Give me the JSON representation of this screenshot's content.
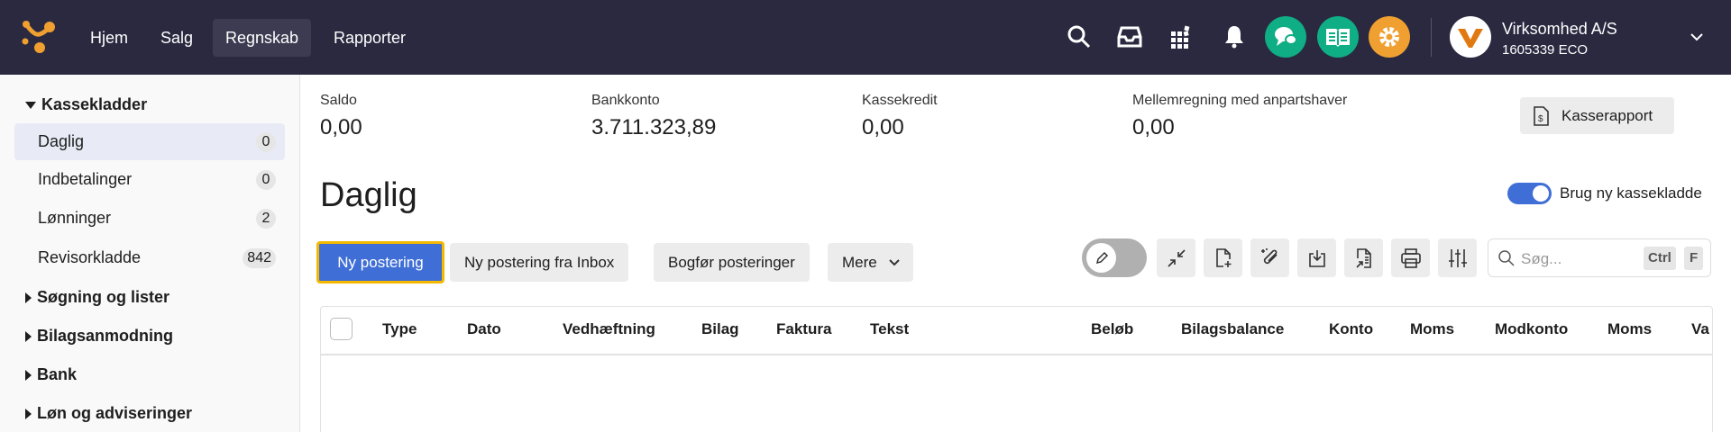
{
  "header": {
    "nav": [
      "Hjem",
      "Salg",
      "Regnskab",
      "Rapporter"
    ],
    "active_nav": "Regnskab",
    "icons": [
      "search-icon",
      "inbox-icon",
      "apps-icon",
      "bell-icon",
      "chat-icon",
      "book-icon",
      "gear-icon"
    ],
    "colors": {
      "bg": "#2a2940",
      "chat": "#0fae85",
      "book": "#0fae85",
      "gear": "#f0a030",
      "logo": "#f0a030"
    },
    "company": {
      "name": "Virksomhed A/S",
      "id": "1605339 ECO"
    }
  },
  "sidebar": {
    "kassekladder": {
      "label": "Kassekladder",
      "items": [
        {
          "label": "Daglig",
          "count": "0"
        },
        {
          "label": "Indbetalinger",
          "count": "0"
        },
        {
          "label": "Lønninger",
          "count": "2"
        },
        {
          "label": "Revisorkladde",
          "count": "842"
        }
      ]
    },
    "sections": [
      "Søgning og lister",
      "Bilagsanmodning",
      "Bank",
      "Løn og adviseringer"
    ]
  },
  "stats": [
    {
      "label": "Saldo",
      "value": "0,00"
    },
    {
      "label": "Bankkonto",
      "value": "3.711.323,89"
    },
    {
      "label": "Kassekredit",
      "value": "0,00"
    },
    {
      "label": "Mellemregning med anpartshaver",
      "value": "0,00"
    }
  ],
  "kasserapport_label": "Kasserapport",
  "title": "Daglig",
  "toggle": {
    "label": "Brug ny kassekladde",
    "on": true,
    "color": "#3f6fd6"
  },
  "actions": {
    "new": "Ny postering",
    "inbox": "Ny postering fra Inbox",
    "post": "Bogfør posteringer",
    "more": "Mere"
  },
  "search": {
    "placeholder": "Søg...",
    "kbd1": "Ctrl",
    "kbd2": "F"
  },
  "table": {
    "columns": [
      "Type",
      "Dato",
      "Vedhæftning",
      "Bilag",
      "Faktura",
      "Tekst",
      "Beløb",
      "Bilagsbalance",
      "Konto",
      "Moms",
      "Modkonto",
      "Moms",
      "Va"
    ]
  }
}
